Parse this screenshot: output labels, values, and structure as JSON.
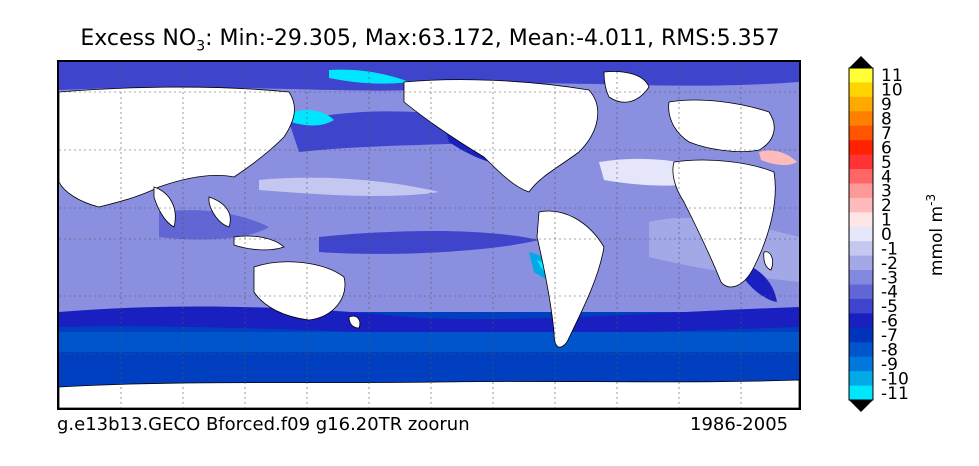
{
  "title": {
    "prefix": "Excess NO",
    "subscript": "3",
    "stats": ": Min:-29.305, Max:63.172, Mean:-4.011, RMS:5.357"
  },
  "run_label": "g.e13b13.GECO Bforced.f09 g16.20TR zoorun",
  "period_label": "1986-2005",
  "colorbar": {
    "unit": "mmol m",
    "unit_superscript": "-3",
    "levels": [
      "11",
      "10",
      "9",
      "8",
      "7",
      "6",
      "5",
      "4",
      "3",
      "2",
      "1",
      "0",
      "-1",
      "-2",
      "-3",
      "-4",
      "-5",
      "-6",
      "-7",
      "-8",
      "-9",
      "-10",
      "-11"
    ],
    "colors": [
      "#ffff33",
      "#ffd400",
      "#ffaa00",
      "#ff7f00",
      "#ff5500",
      "#ff2200",
      "#ff3333",
      "#ff6666",
      "#ff9999",
      "#ffbbbb",
      "#ffe6e6",
      "#e6e6fa",
      "#c4c8f0",
      "#a3a8e6",
      "#8288dd",
      "#6166d4",
      "#3e44cc",
      "#1a1fc0",
      "#0033bb",
      "#0055cc",
      "#0077dd",
      "#00aae6",
      "#00e6ff"
    ],
    "over_color": "#000000",
    "under_color": "#000000"
  },
  "map": {
    "ocean_base_color": "#8a8fe0",
    "land_color": "#ffffff",
    "gridlines": "dashed"
  }
}
